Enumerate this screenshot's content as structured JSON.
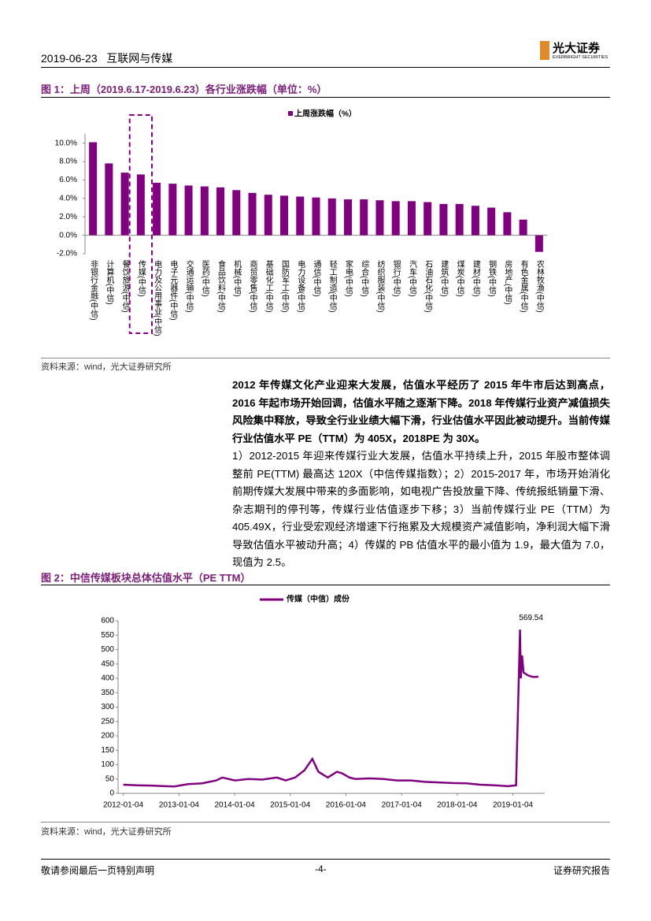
{
  "header": {
    "date": "2019-06-23",
    "section": "互联网与传媒",
    "brand": "光大证券",
    "brand_en": "EVERBRIGHT SECURITIES"
  },
  "figure1_title": "图 1：上周（2019.6.17-2019.6.23）各行业涨跌幅（单位：%）",
  "figure1_source": "资料来源：wind，光大证券研究所",
  "body": {
    "bold": "2012 年传媒文化产业迎来大发展，估值水平经历了 2015 年牛市后达到高点，2016 年起市场开始回调，估值水平随之逐渐下降。2018 年传媒行业资产减值损失风险集中释放，导致全行业业绩大幅下滑，行业估值水平因此被动提升。当前传媒行业估值水平 PE（TTM）为 405X，2018PE 为 30X。",
    "normal": "1）2012-2015 年迎来传媒行业大发展，估值水平持续上升，2015 年股市整体调整前 PE(TTM) 最高达 120X（中信传媒指数）；2）2015-2017 年，市场开始消化前期传媒大发展中带来的多面影响，如电视广告投放量下降、传统报纸销量下滑、杂志期刊的停刊等，传媒行业估值逐步下移；3）当前传媒行业 PE（TTM）为 405.49X，行业受宏观经济增速下行拖累及大规模资产减值影响，净利润大幅下滑导致估值水平被动升高；4）传媒的 PB 估值水平的最小值为 1.9，最大值为 7.0，现值为 2.5。"
  },
  "figure2_title": "图 2：中信传媒板块总体估值水平（PE TTM）",
  "figure2_source": "资料来源：wind，光大证券研究所",
  "footer": {
    "left": "敬请参阅最后一页特别声明",
    "page": "-4-",
    "right": "证券研究报告"
  },
  "chart_data": [
    {
      "type": "bar",
      "categories": [
        "非银行金融(中信)",
        "计算机(中信)",
        "餐饮旅游(中信)",
        "传媒(中信)",
        "电力及公用事业(中信)",
        "电子元器件(中信)",
        "交通运输(中信)",
        "医药(中信)",
        "食品饮料(中信)",
        "机械(中信)",
        "商贸零售(中信)",
        "基础化工(中信)",
        "国防军工(中信)",
        "电力设备(中信)",
        "通信(中信)",
        "轻工制造(中信)",
        "家电(中信)",
        "综合(中信)",
        "纺织服装(中信)",
        "银行(中信)",
        "汽车(中信)",
        "石油石化(中信)",
        "建筑(中信)",
        "煤炭(中信)",
        "建材(中信)",
        "钢铁(中信)",
        "房地产(中信)",
        "有色金属(中信)",
        "农林牧渔(中信)"
      ],
      "series": [
        {
          "name": "上周涨跌幅（%）",
          "color": "#800080",
          "values": [
            10.1,
            7.8,
            6.8,
            6.6,
            5.7,
            5.6,
            5.4,
            5.3,
            5.2,
            4.9,
            4.6,
            4.4,
            4.3,
            4.2,
            4.1,
            4.0,
            3.9,
            3.9,
            3.8,
            3.7,
            3.7,
            3.6,
            3.4,
            3.4,
            3.2,
            3.0,
            2.5,
            1.7,
            -1.8
          ]
        }
      ],
      "ylim": [
        -2,
        11
      ],
      "yticks": [
        {
          "value": -2,
          "label": "-2.0%"
        },
        {
          "value": 0,
          "label": "0.0%"
        },
        {
          "value": 2,
          "label": "2.0%"
        },
        {
          "value": 4,
          "label": "4.0%"
        },
        {
          "value": 6,
          "label": "6.0%"
        },
        {
          "value": 8,
          "label": "8.0%"
        },
        {
          "value": 10,
          "label": "10.0%"
        }
      ]
    },
    {
      "type": "line",
      "x": [
        "2012-01-04",
        "2012-04-05",
        "2012-07-05",
        "2012-10-08",
        "2012-12-04",
        "2013-03-05",
        "2013-06-05",
        "2013-09-05",
        "2013-10-15",
        "2014-01-06",
        "2014-04-04",
        "2014-07-04",
        "2014-10-08",
        "2014-12-05",
        "2015-02-05",
        "2015-04-07",
        "2015-05-29",
        "2015-07-08",
        "2015-09-07",
        "2015-11-06",
        "2015-12-10",
        "2016-01-28",
        "2016-03-07",
        "2016-06-06",
        "2016-09-05",
        "2016-12-05",
        "2017-03-06",
        "2017-06-05",
        "2017-09-05",
        "2017-12-05",
        "2018-03-05",
        "2018-06-05",
        "2018-09-05",
        "2018-12-05",
        "2019-01-25",
        "2019-02-20",
        "2019-02-25",
        "2019-03-05",
        "2019-03-15",
        "2019-04-15",
        "2019-05-15",
        "2019-06-21"
      ],
      "series": [
        {
          "name": "传媒（中信）成份",
          "color": "#800080",
          "values": [
            30,
            28,
            27,
            25,
            24,
            32,
            35,
            45,
            55,
            45,
            50,
            48,
            55,
            45,
            55,
            80,
            120,
            75,
            55,
            75,
            70,
            55,
            50,
            52,
            50,
            45,
            45,
            40,
            38,
            36,
            35,
            30,
            28,
            25,
            28,
            569.54,
            400,
            480,
            420,
            410,
            405,
            405.49
          ]
        }
      ],
      "xlim": [
        "2011-12-01",
        "2019-08-01"
      ],
      "xticks": [
        "2012-01-04",
        "2013-01-04",
        "2014-01-04",
        "2015-01-04",
        "2016-01-04",
        "2017-01-04",
        "2018-01-04",
        "2019-01-04"
      ],
      "ylim": [
        0,
        600
      ],
      "yticks": [
        0,
        50,
        100,
        150,
        200,
        250,
        300,
        350,
        400,
        450,
        500,
        550,
        600
      ]
    }
  ]
}
